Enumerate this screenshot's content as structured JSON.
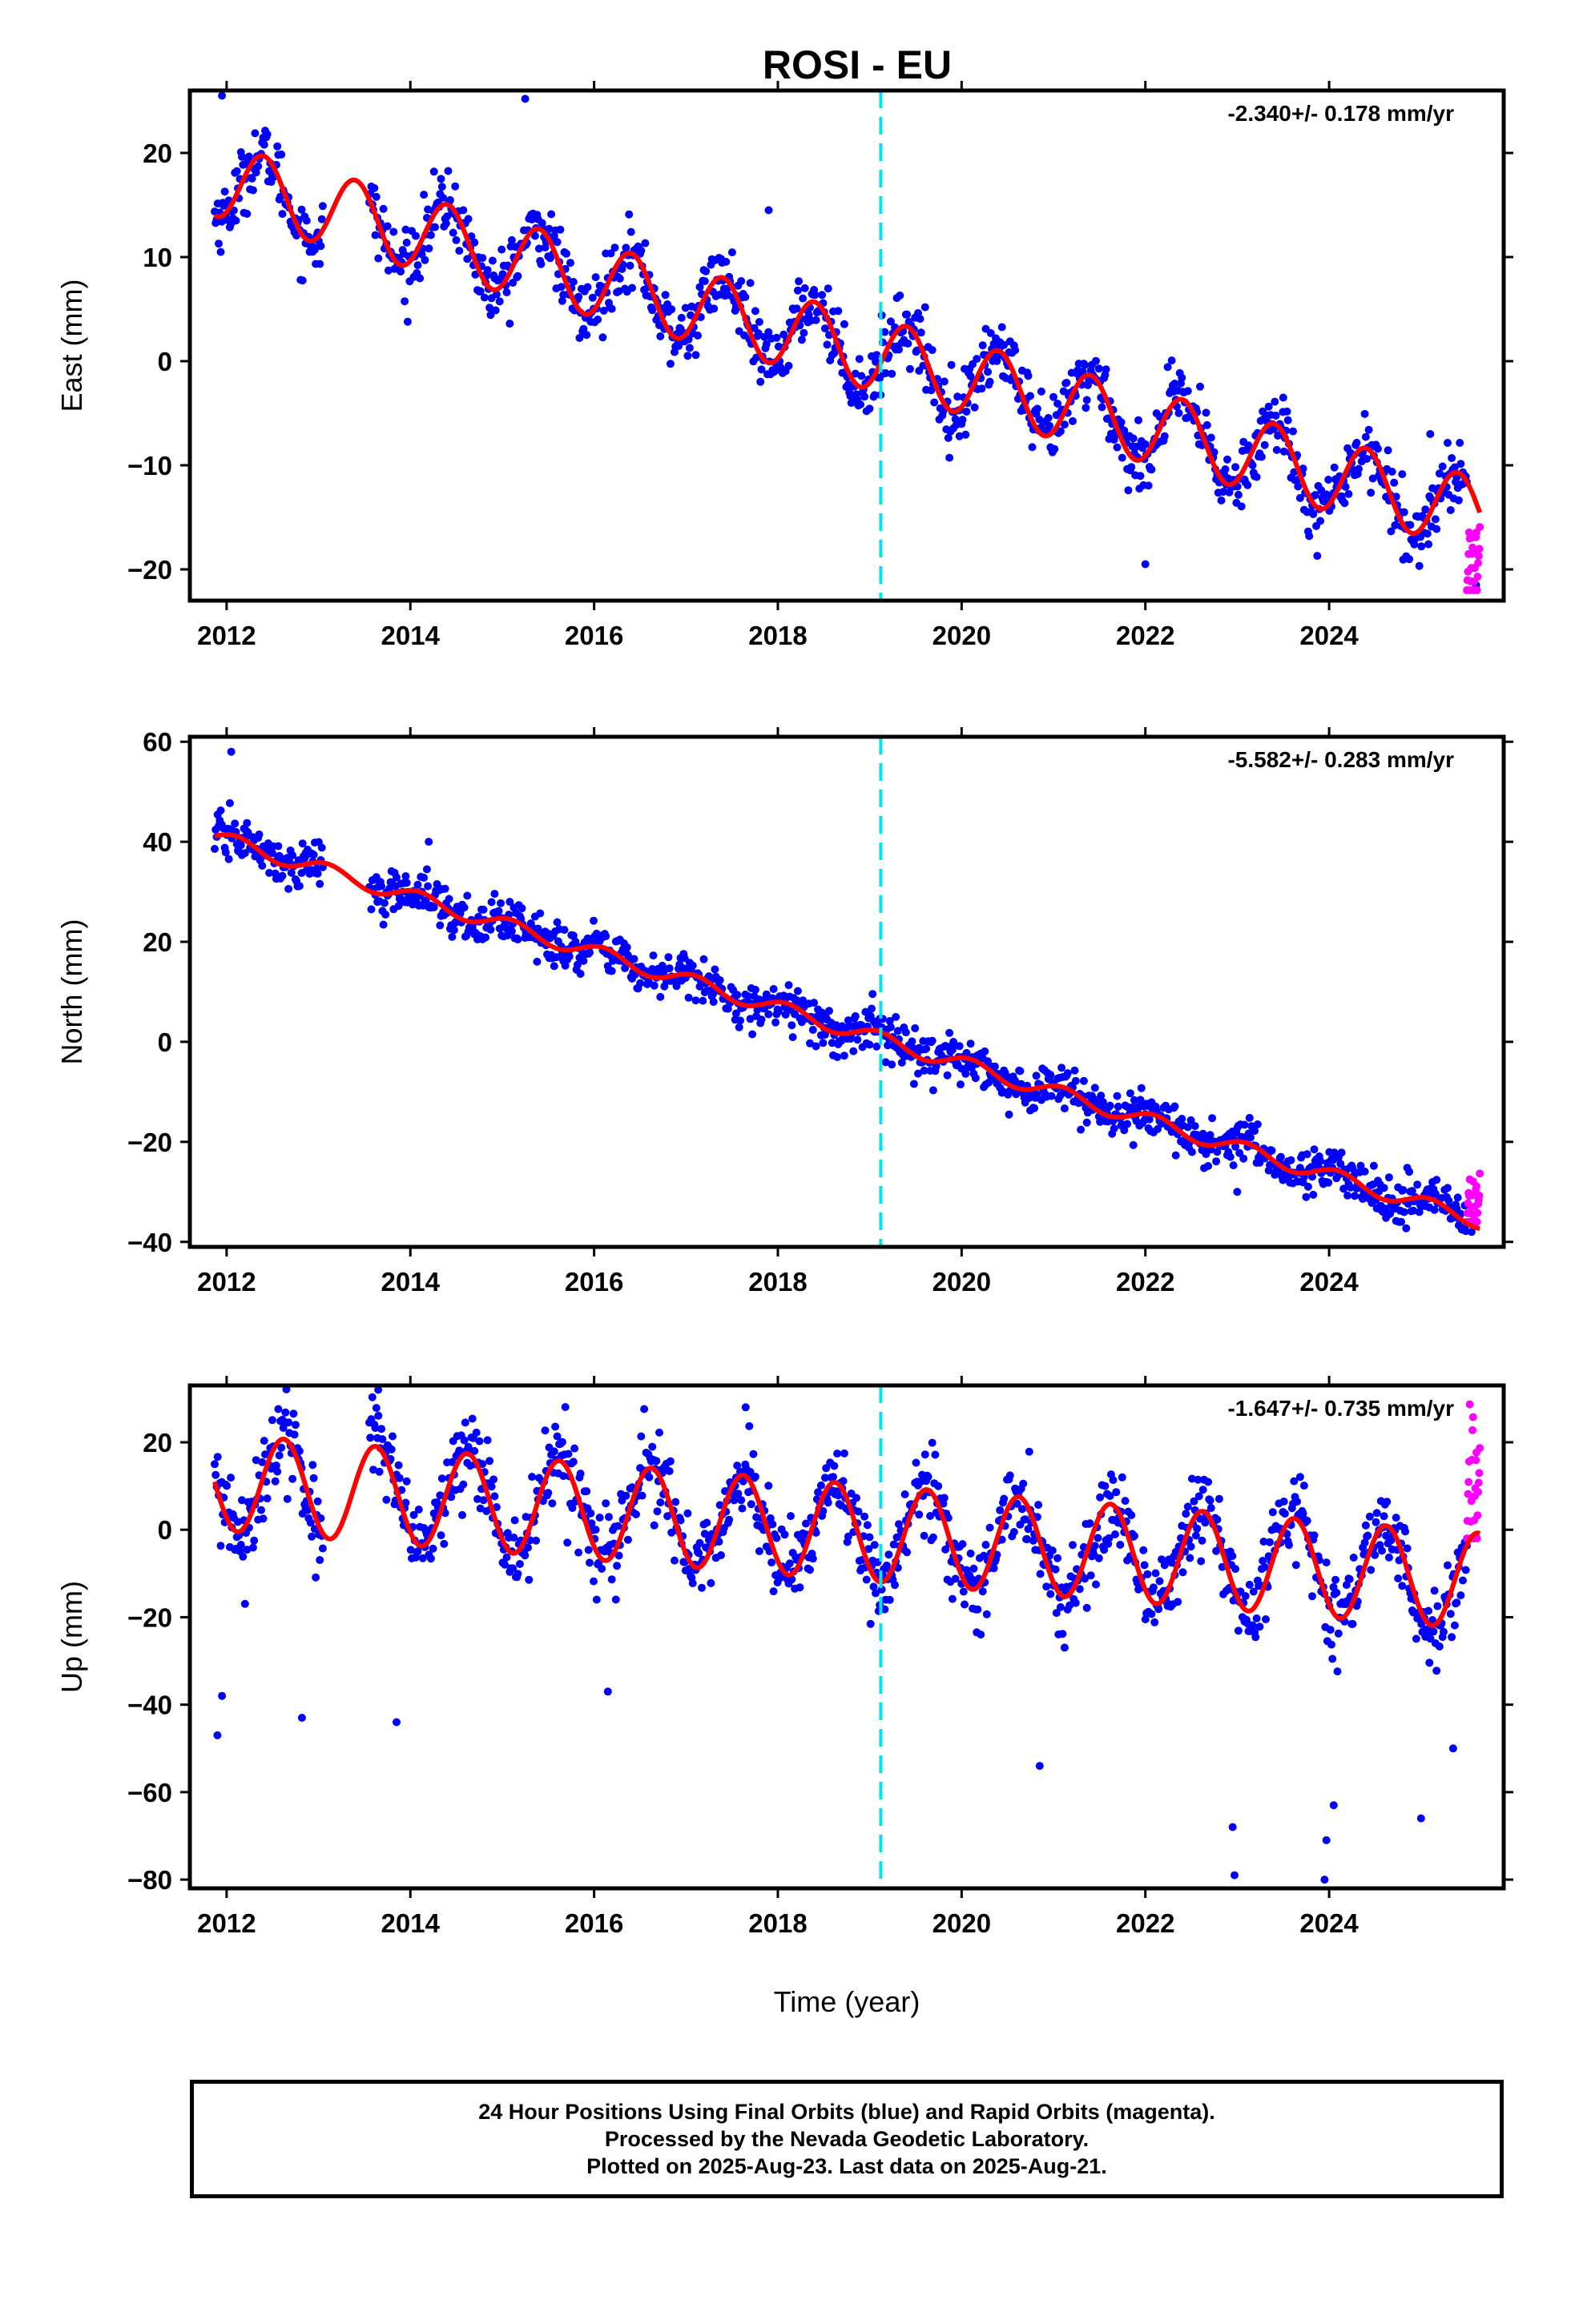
{
  "title": "ROSI - EU",
  "xlabel": "Time (year)",
  "footer": {
    "line1": "24 Hour Positions Using Final Orbits (blue) and Rapid Orbits (magenta).",
    "line2": "Processed by the Nevada Geodetic Laboratory.",
    "line3": "Plotted on 2025-Aug-23. Last data on 2025-Aug-21."
  },
  "colors": {
    "final": "#0000ff",
    "rapid": "#ff00ff",
    "model": "#ff0000",
    "event": "#00e5ee",
    "axis": "#000000"
  },
  "chart_data": [
    {
      "type": "scatter",
      "component": "East",
      "ylabel": "East (mm)",
      "rate_label": "-2.340+/- 0.178 mm/yr",
      "xlim": [
        2011.6,
        2025.9
      ],
      "ylim": [
        -23,
        26
      ],
      "xticks": [
        2012,
        2014,
        2016,
        2018,
        2020,
        2022,
        2024
      ],
      "yticks": [
        -20,
        -10,
        0,
        10,
        20
      ],
      "event_x": 2019.12,
      "data_start": 2011.87,
      "gap": [
        2013.05,
        2013.55
      ],
      "rapid_start": 2025.5,
      "data_end": 2025.64,
      "model": {
        "ref_year": 2019.12,
        "offset": 0.5,
        "rate": -2.34,
        "annual_amp": 3.5,
        "peak_fraction": 0.4,
        "scatter": 1.6,
        "outliers": [
          [
            2011.95,
            25.5
          ],
          [
            2015.25,
            25.2
          ],
          [
            2017.9,
            14.5
          ],
          [
            2023.5,
            -3.5
          ],
          [
            2025.1,
            -7
          ],
          [
            2022.0,
            -19.5
          ],
          [
            2025.6,
            -21.5
          ]
        ],
        "rapid_range": [
          -22,
          -15
        ]
      }
    },
    {
      "type": "scatter",
      "component": "North",
      "ylabel": "North (mm)",
      "rate_label": "-5.582+/- 0.283 mm/yr",
      "xlim": [
        2011.6,
        2025.9
      ],
      "ylim": [
        -41,
        61
      ],
      "xticks": [
        2012,
        2014,
        2016,
        2018,
        2020,
        2022,
        2024
      ],
      "yticks": [
        -40,
        -20,
        0,
        20,
        40,
        60
      ],
      "event_x": 2019.12,
      "data_start": 2011.87,
      "gap": [
        2013.05,
        2013.55
      ],
      "rapid_start": 2025.5,
      "data_end": 2025.64,
      "model": {
        "ref_year": 2019.12,
        "offset": 0.5,
        "rate": -5.58,
        "annual_amp": 1.5,
        "peak_fraction": 0.1,
        "scatter": 2.2,
        "outliers": [
          [
            2012.05,
            58
          ],
          [
            2014.2,
            40
          ],
          [
            2017.3,
            8
          ],
          [
            2020.5,
            -8
          ],
          [
            2023.0,
            -30
          ],
          [
            2025.55,
            -38
          ]
        ],
        "rapid_range": [
          -36,
          -26
        ]
      }
    },
    {
      "type": "scatter",
      "component": "Up",
      "ylabel": "Up (mm)",
      "rate_label": "-1.647+/- 0.735 mm/yr",
      "xlim": [
        2011.6,
        2025.9
      ],
      "ylim": [
        -82,
        33
      ],
      "xticks": [
        2012,
        2014,
        2016,
        2018,
        2020,
        2022,
        2024
      ],
      "yticks": [
        -80,
        -60,
        -40,
        -20,
        0,
        20
      ],
      "event_x": 2019.12,
      "data_start": 2011.87,
      "gap": [
        2013.05,
        2013.55
      ],
      "rapid_start": 2025.5,
      "data_end": 2025.64,
      "model": {
        "ref_year": 2019.12,
        "offset": -1,
        "rate": -1.65,
        "annual_amp": 11,
        "peak_fraction": 0.62,
        "scatter": 5,
        "outliers": [
          [
            2011.9,
            -47
          ],
          [
            2011.95,
            -38
          ],
          [
            2012.82,
            -43
          ],
          [
            2013.65,
            32
          ],
          [
            2013.85,
            -44
          ],
          [
            2016.15,
            -37
          ],
          [
            2017.65,
            28
          ],
          [
            2020.85,
            -54
          ],
          [
            2022.95,
            -68
          ],
          [
            2022.97,
            -79
          ],
          [
            2023.95,
            -80
          ],
          [
            2023.97,
            -71
          ],
          [
            2024.05,
            -63
          ],
          [
            2025.0,
            -66
          ],
          [
            2025.35,
            -50
          ]
        ],
        "rapid_range": [
          -2,
          29
        ]
      }
    }
  ]
}
